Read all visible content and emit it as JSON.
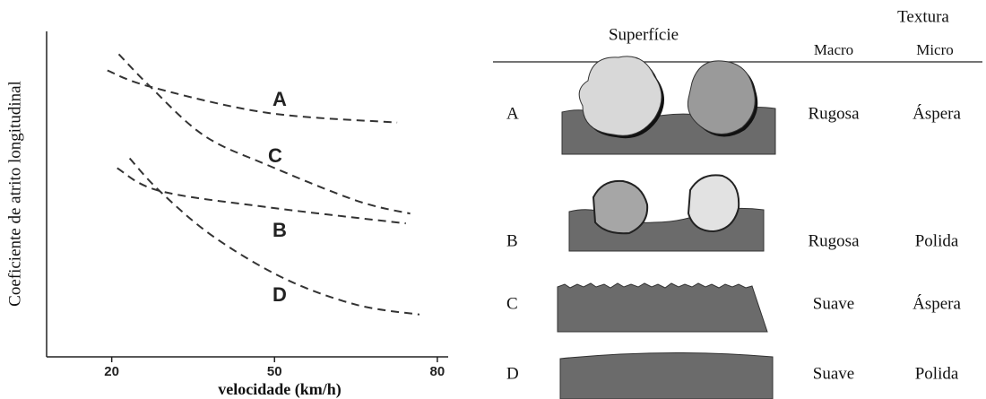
{
  "chart_data": {
    "type": "line",
    "xlabel": "velocidade (km/h)",
    "ylabel": "Coeficiente de atrito longitudinal",
    "xlim": [
      8,
      82
    ],
    "xticks": [
      20,
      50,
      80
    ],
    "ylim": [
      0,
      1
    ],
    "color": "#333333",
    "series": [
      {
        "name": "A",
        "x": [
          19.2,
          27.1,
          48.6,
          72.6
        ],
        "values": [
          0.88,
          0.83,
          0.75,
          0.72
        ]
      },
      {
        "name": "B",
        "x": [
          21.0,
          28.8,
          48.6,
          74.2
        ],
        "values": [
          0.58,
          0.51,
          0.46,
          0.41
        ]
      },
      {
        "name": "C",
        "x": [
          21.3,
          27.1,
          37.0,
          48.6,
          65.1,
          75.0
        ],
        "values": [
          0.93,
          0.83,
          0.68,
          0.59,
          0.48,
          0.44
        ]
      },
      {
        "name": "D",
        "x": [
          23.3,
          28.8,
          38.7,
          51.9,
          65.1,
          76.7
        ],
        "values": [
          0.61,
          0.51,
          0.37,
          0.24,
          0.16,
          0.13
        ]
      }
    ]
  },
  "table": {
    "header": {
      "surface": "Superfície",
      "texture": "Textura",
      "macro": "Macro",
      "micro": "Micro"
    },
    "rows": [
      {
        "label": "A",
        "macro": "Rugosa",
        "micro": "Áspera"
      },
      {
        "label": "B",
        "macro": "Rugosa",
        "micro": "Polida"
      },
      {
        "label": "C",
        "macro": "Suave",
        "micro": "Áspera"
      },
      {
        "label": "D",
        "macro": "Suave",
        "micro": "Polida"
      }
    ]
  }
}
